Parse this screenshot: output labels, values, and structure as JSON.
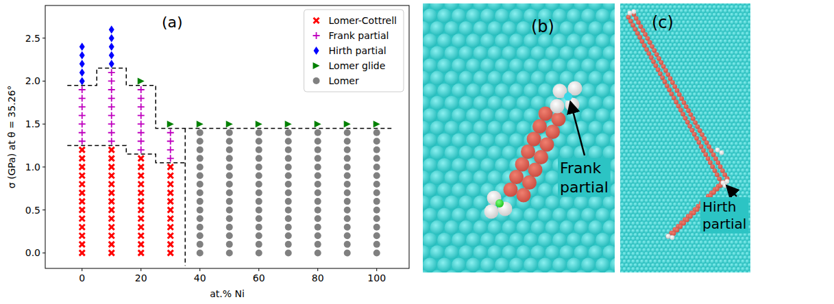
{
  "chart_data": {
    "type": "scatter",
    "panel_label": "(a)",
    "x_label": "at.% Ni",
    "y_label": "σ (GPa) at θ = 35.26°",
    "xlim": [
      -12.5,
      111
    ],
    "xticks": [
      0,
      20,
      40,
      60,
      80,
      100
    ],
    "ylim": [
      -0.18,
      2.88
    ],
    "yticks": [
      {
        "value": 0,
        "label": "0.0"
      },
      0.5,
      {
        "value": 1,
        "label": "1.0"
      },
      1.5,
      {
        "value": 2,
        "label": "2.0"
      },
      2.5
    ],
    "legend": "upper right",
    "series": [
      {
        "name": "Lomer-Cottrell",
        "color": "#ff0000",
        "marker": "x",
        "x": [
          0,
          0,
          0,
          0,
          0,
          0,
          0,
          0,
          0,
          0,
          0,
          0,
          0,
          10,
          10,
          10,
          10,
          10,
          10,
          10,
          10,
          10,
          10,
          10,
          10,
          10,
          20,
          20,
          20,
          20,
          20,
          20,
          20,
          20,
          20,
          20,
          20,
          20,
          30,
          30,
          30,
          30,
          30,
          30,
          30,
          30,
          30,
          30,
          30
        ],
        "values": [
          0,
          0.1,
          0.2,
          0.3,
          0.4,
          0.5,
          0.6,
          0.7,
          0.8,
          0.9,
          1.0,
          1.1,
          1.2,
          0,
          0.1,
          0.2,
          0.3,
          0.4,
          0.5,
          0.6,
          0.7,
          0.8,
          0.9,
          1.0,
          1.1,
          1.2,
          0,
          0.1,
          0.2,
          0.3,
          0.4,
          0.5,
          0.6,
          0.7,
          0.8,
          0.9,
          1.0,
          1.1,
          0,
          0.1,
          0.2,
          0.3,
          0.4,
          0.5,
          0.6,
          0.7,
          0.8,
          0.9,
          1.0
        ]
      },
      {
        "name": "Frank partial",
        "color": "#bf00bf",
        "marker": "plus",
        "x": [
          0,
          0,
          0,
          0,
          0,
          0,
          0,
          10,
          10,
          10,
          10,
          10,
          10,
          10,
          10,
          10,
          20,
          20,
          20,
          20,
          20,
          20,
          20,
          20,
          30,
          30,
          30,
          30
        ],
        "values": [
          1.3,
          1.4,
          1.5,
          1.6,
          1.7,
          1.8,
          1.9,
          1.3,
          1.4,
          1.5,
          1.6,
          1.7,
          1.8,
          1.9,
          2.0,
          2.1,
          1.2,
          1.3,
          1.4,
          1.5,
          1.6,
          1.7,
          1.8,
          1.9,
          1.1,
          1.2,
          1.3,
          1.4
        ]
      },
      {
        "name": "Hirth partial",
        "color": "#0000ff",
        "marker": "diamond",
        "x": [
          0,
          0,
          0,
          0,
          0,
          10,
          10,
          10,
          10,
          10
        ],
        "values": [
          2.0,
          2.1,
          2.2,
          2.3,
          2.4,
          2.2,
          2.3,
          2.4,
          2.5,
          2.6
        ]
      },
      {
        "name": "Lomer glide",
        "color": "#008000",
        "marker": "triangle-right",
        "x": [
          20,
          30,
          40,
          50,
          60,
          70,
          80,
          90,
          100
        ],
        "values": [
          2.0,
          1.5,
          1.5,
          1.5,
          1.5,
          1.5,
          1.5,
          1.5,
          1.5
        ]
      },
      {
        "name": "Lomer",
        "color": "#808080",
        "marker": "circle",
        "x": [
          40,
          40,
          40,
          40,
          40,
          40,
          40,
          40,
          40,
          40,
          40,
          40,
          40,
          40,
          40,
          50,
          50,
          50,
          50,
          50,
          50,
          50,
          50,
          50,
          50,
          50,
          50,
          50,
          50,
          50,
          60,
          60,
          60,
          60,
          60,
          60,
          60,
          60,
          60,
          60,
          60,
          60,
          60,
          60,
          60,
          70,
          70,
          70,
          70,
          70,
          70,
          70,
          70,
          70,
          70,
          70,
          70,
          70,
          70,
          70,
          80,
          80,
          80,
          80,
          80,
          80,
          80,
          80,
          80,
          80,
          80,
          80,
          80,
          80,
          80,
          90,
          90,
          90,
          90,
          90,
          90,
          90,
          90,
          90,
          90,
          90,
          90,
          90,
          90,
          90,
          100,
          100,
          100,
          100,
          100,
          100,
          100,
          100,
          100,
          100,
          100,
          100,
          100,
          100,
          100
        ],
        "values": [
          0,
          0.1,
          0.2,
          0.3,
          0.4,
          0.5,
          0.6,
          0.7,
          0.8,
          0.9,
          1.0,
          1.1,
          1.2,
          1.3,
          1.4,
          0,
          0.1,
          0.2,
          0.3,
          0.4,
          0.5,
          0.6,
          0.7,
          0.8,
          0.9,
          1.0,
          1.1,
          1.2,
          1.3,
          1.4,
          0,
          0.1,
          0.2,
          0.3,
          0.4,
          0.5,
          0.6,
          0.7,
          0.8,
          0.9,
          1.0,
          1.1,
          1.2,
          1.3,
          1.4,
          0,
          0.1,
          0.2,
          0.3,
          0.4,
          0.5,
          0.6,
          0.7,
          0.8,
          0.9,
          1.0,
          1.1,
          1.2,
          1.3,
          1.4,
          0,
          0.1,
          0.2,
          0.3,
          0.4,
          0.5,
          0.6,
          0.7,
          0.8,
          0.9,
          1.0,
          1.1,
          1.2,
          1.3,
          1.4,
          0,
          0.1,
          0.2,
          0.3,
          0.4,
          0.5,
          0.6,
          0.7,
          0.8,
          0.9,
          1.0,
          1.1,
          1.2,
          1.3,
          1.4,
          0,
          0.1,
          0.2,
          0.3,
          0.4,
          0.5,
          0.6,
          0.7,
          0.8,
          0.9,
          1.0,
          1.1,
          1.2,
          1.3,
          1.4
        ]
      }
    ],
    "boundaries": [
      {
        "line_style": "dashed",
        "x": [
          -5,
          5,
          5,
          15,
          15,
          25,
          25,
          105
        ],
        "y": [
          1.95,
          1.95,
          2.15,
          2.15,
          1.95,
          1.95,
          1.45,
          1.45
        ]
      },
      {
        "line_style": "dashed",
        "x": [
          -5,
          15,
          15,
          25,
          25,
          35
        ],
        "y": [
          1.25,
          1.25,
          1.15,
          1.15,
          1.05,
          1.05
        ]
      },
      {
        "line_style": "dashed",
        "x": [
          35,
          35
        ],
        "y": [
          1.45,
          -0.15
        ]
      }
    ]
  },
  "panels": [
    {
      "label": "(b)",
      "annotation": "Frank partial"
    },
    {
      "label": "(c)",
      "annotation": "Hirth partial"
    }
  ]
}
